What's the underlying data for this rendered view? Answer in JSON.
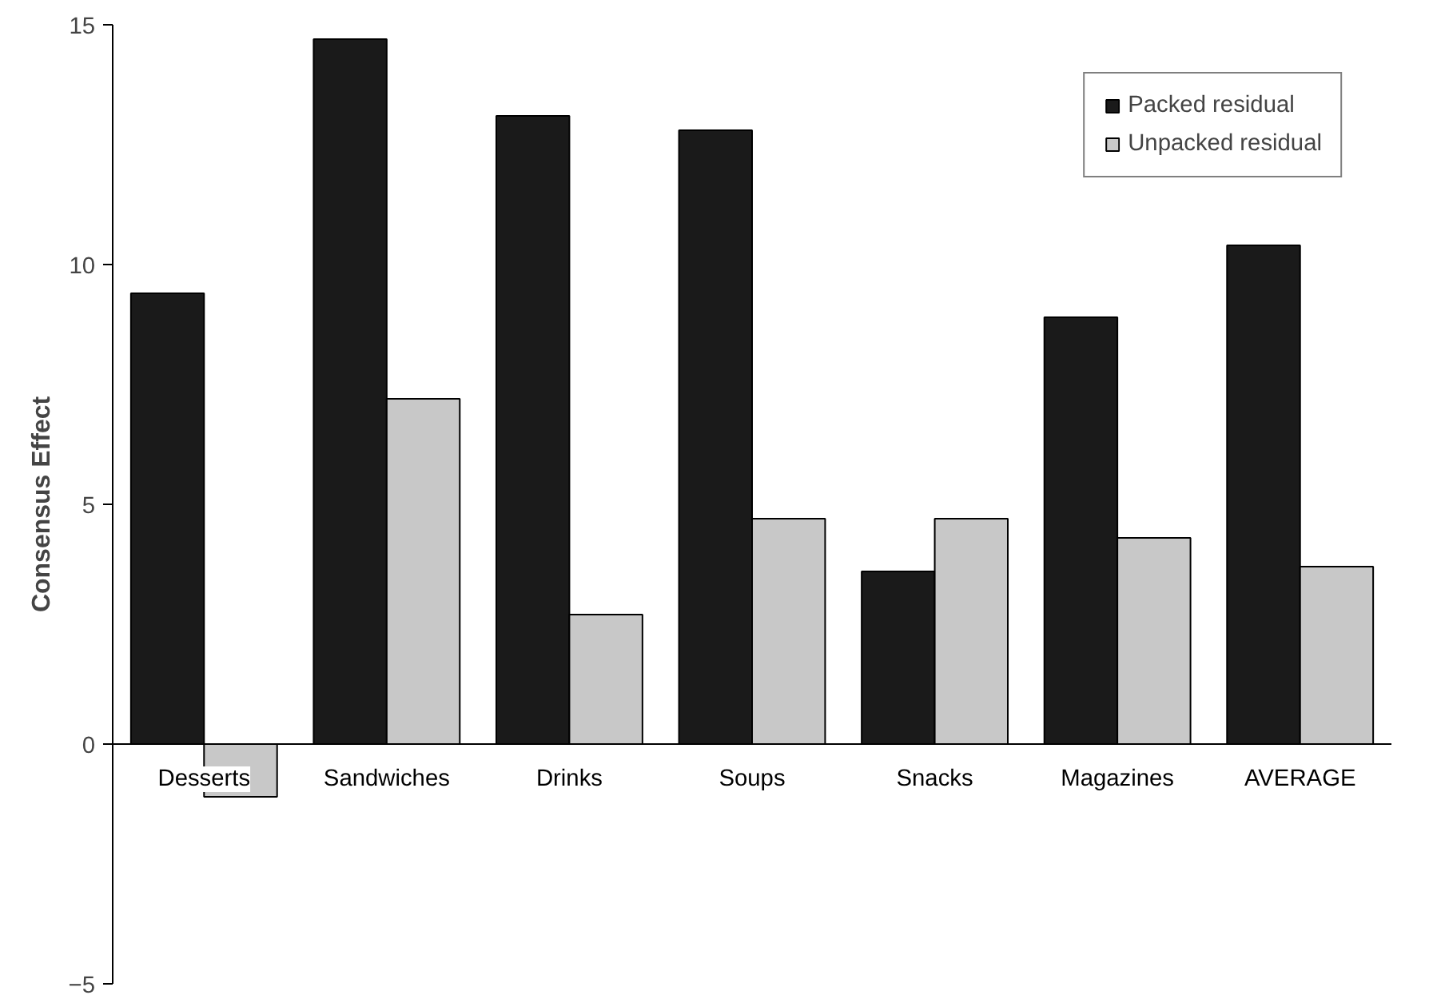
{
  "chart_data": {
    "type": "bar",
    "ylabel": "Consensus Effect",
    "categories": [
      "Desserts",
      "Sandwiches",
      "Drinks",
      "Soups",
      "Snacks",
      "Magazines",
      "AVERAGE"
    ],
    "series": [
      {
        "name": "Packed residual",
        "color": "#1a1a1a",
        "values": [
          9.4,
          14.7,
          13.1,
          12.8,
          3.6,
          8.9,
          10.4
        ]
      },
      {
        "name": "Unpacked residual",
        "color": "#c8c8c8",
        "values": [
          -1.1,
          7.2,
          2.7,
          4.7,
          4.7,
          4.3,
          3.7
        ]
      }
    ],
    "ylim": [
      -5,
      15
    ],
    "yticks": [
      -5,
      0,
      5,
      10,
      15
    ],
    "grid": false,
    "legend": "top right"
  }
}
